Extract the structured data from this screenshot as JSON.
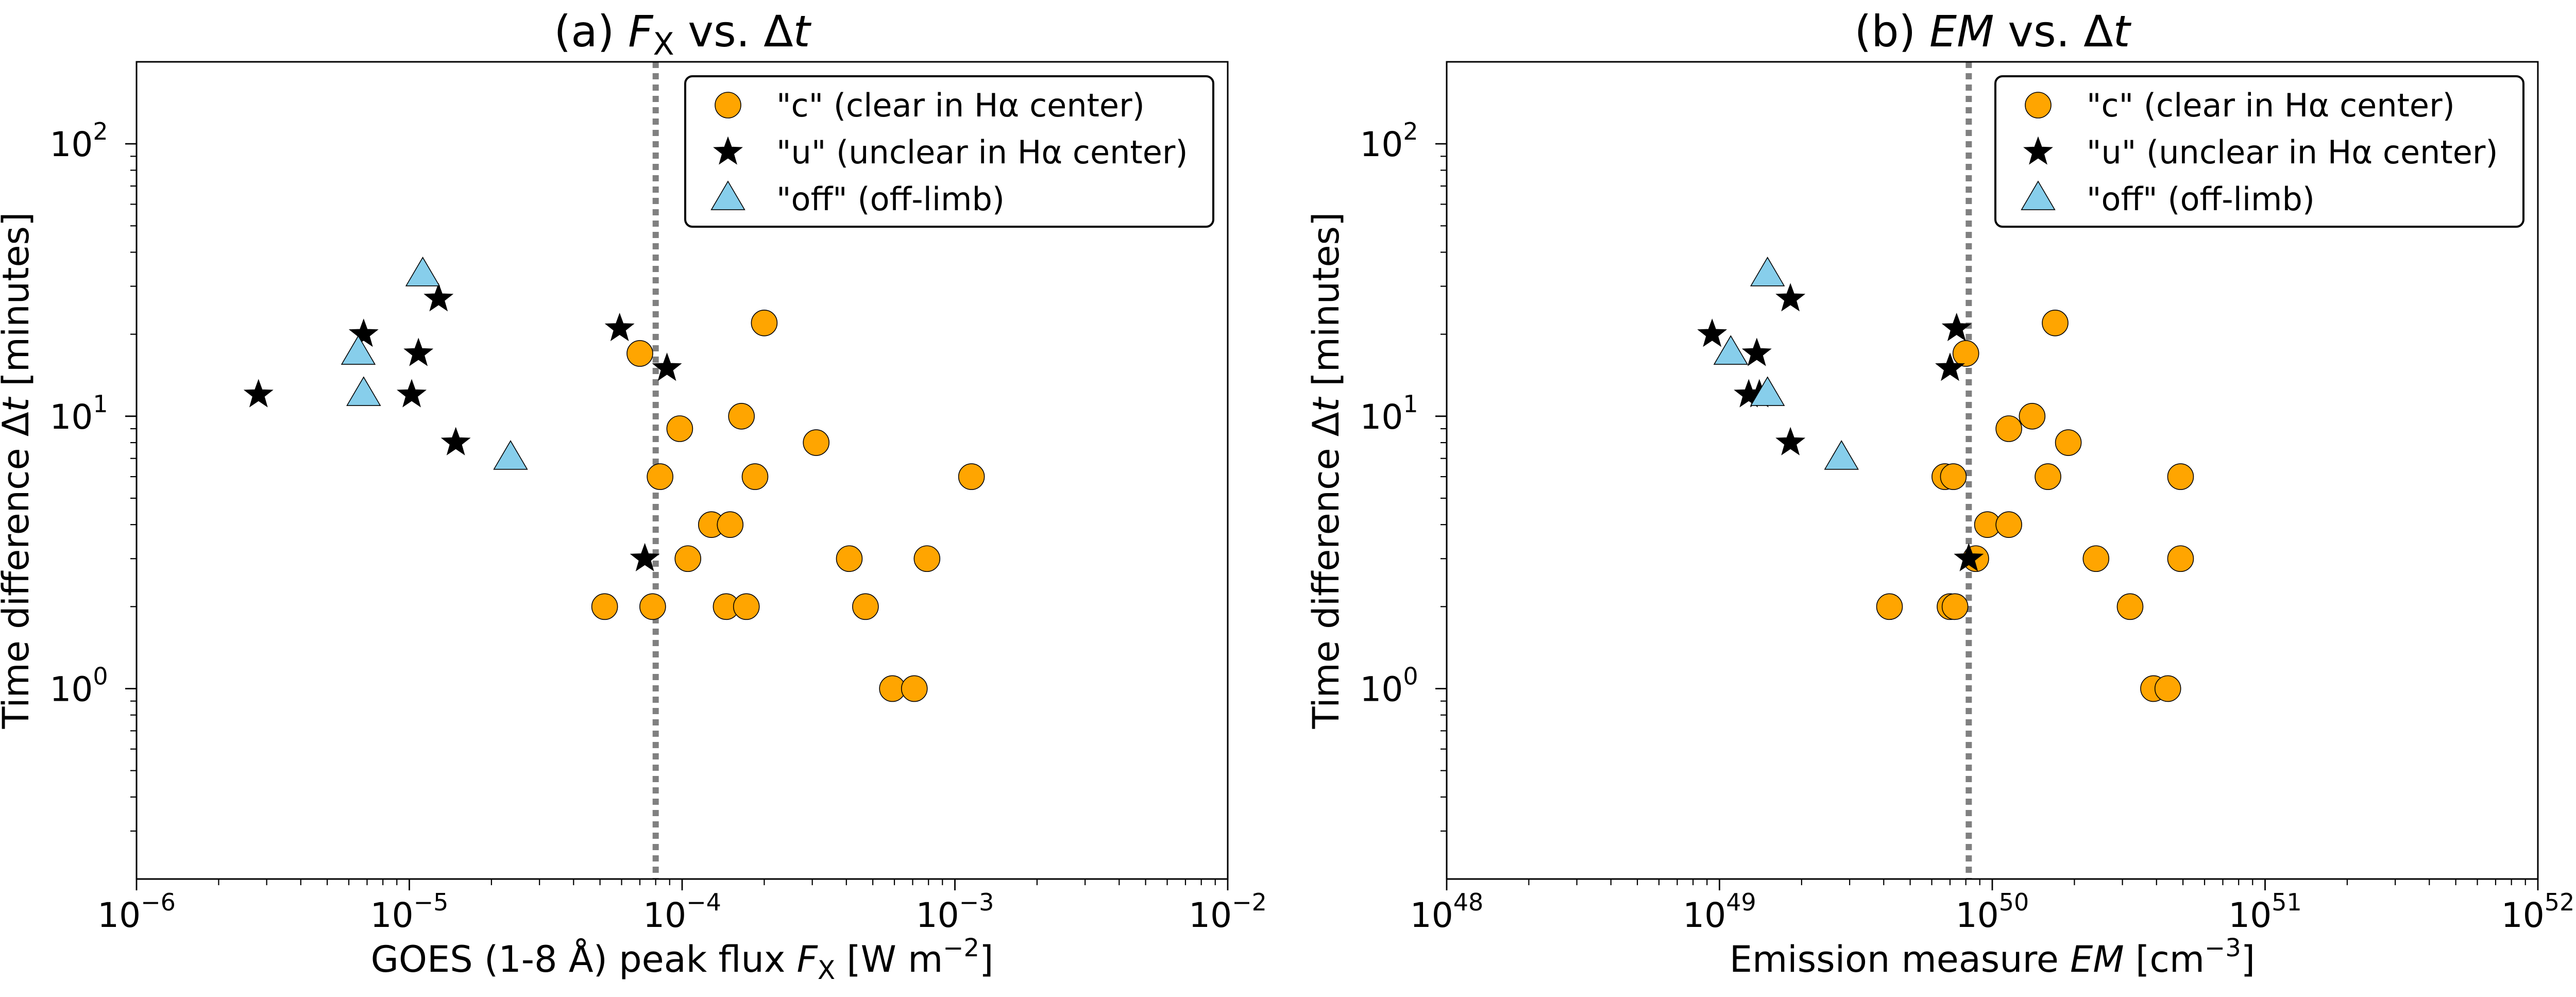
{
  "chart_data": [
    {
      "type": "scatter",
      "title_prefix": "(a) ",
      "title_var": "F",
      "title_var_sub": "X",
      "title_suffix": " vs. Δ",
      "title_var2": "t",
      "xlabel_prefix": "GOES (1-8 Å) peak flux  ",
      "xlabel_var": "F",
      "xlabel_var_sub": "X",
      "xlabel_unit": " [W m",
      "xlabel_unit_sup": "−2",
      "xlabel_unit_end": "]",
      "ylabel_prefix": "Time difference Δ",
      "ylabel_var": "t",
      "ylabel_suffix": " [minutes]",
      "xscale": "log",
      "yscale": "log",
      "xlim": [
        1e-06,
        0.01
      ],
      "ylim": [
        0.2,
        200
      ],
      "x_tick_exponents": [
        -6,
        -5,
        -4,
        -3,
        -2
      ],
      "y_tick_exponents": [
        0,
        1,
        2
      ],
      "tick_base": "10",
      "vline_x": 8e-05,
      "legend_position": "top-right",
      "series": [
        {
          "name": "\"c\" (clear in Hα center)",
          "marker": "circle",
          "color": "#ffa500",
          "points": [
            [
              5.2e-05,
              2
            ],
            [
              7e-05,
              17
            ],
            [
              7.8e-05,
              2
            ],
            [
              8.3e-05,
              6
            ],
            [
              9.8e-05,
              9
            ],
            [
              0.000105,
              3
            ],
            [
              0.000128,
              4
            ],
            [
              0.000145,
              2
            ],
            [
              0.00015,
              4
            ],
            [
              0.000165,
              10
            ],
            [
              0.000172,
              2
            ],
            [
              0.000185,
              6
            ],
            [
              0.0002,
              22
            ],
            [
              0.00031,
              8
            ],
            [
              0.00041,
              3
            ],
            [
              0.00047,
              2
            ],
            [
              0.00059,
              1
            ],
            [
              0.00071,
              1
            ],
            [
              0.00079,
              3
            ],
            [
              0.00115,
              6
            ]
          ]
        },
        {
          "name": "\"u\" (unclear in Hα center)",
          "marker": "star",
          "color": "#000000",
          "points": [
            [
              2.8e-06,
              12
            ],
            [
              6.8e-06,
              20
            ],
            [
              1.02e-05,
              12
            ],
            [
              1.08e-05,
              17
            ],
            [
              1.28e-05,
              27
            ],
            [
              1.48e-05,
              8
            ],
            [
              5.9e-05,
              21
            ],
            [
              7.3e-05,
              3
            ],
            [
              8.8e-05,
              15
            ]
          ]
        },
        {
          "name": "\"off\" (off-limb)",
          "marker": "triangle",
          "color": "#87ceeb",
          "points": [
            [
              6.5e-06,
              17
            ],
            [
              6.8e-06,
              12
            ],
            [
              1.12e-05,
              33
            ],
            [
              2.35e-05,
              7
            ]
          ]
        }
      ]
    },
    {
      "type": "scatter",
      "title_prefix": "(b) ",
      "title_var": "EM",
      "title_var_sub": "",
      "title_suffix": " vs. Δ",
      "title_var2": "t",
      "xlabel_prefix": "Emission measure ",
      "xlabel_var": "EM",
      "xlabel_var_sub": "",
      "xlabel_unit": " [cm",
      "xlabel_unit_sup": "−3",
      "xlabel_unit_end": "]",
      "ylabel_prefix": "Time difference Δ",
      "ylabel_var": "t",
      "ylabel_suffix": " [minutes]",
      "xscale": "log",
      "yscale": "log",
      "xlim": [
        1e+48,
        1e+52
      ],
      "ylim": [
        0.2,
        200
      ],
      "x_tick_exponents": [
        48,
        49,
        50,
        51,
        52
      ],
      "y_tick_exponents": [
        0,
        1,
        2
      ],
      "tick_base": "10",
      "vline_x": 8.2e+49,
      "legend_position": "top-right",
      "series": [
        {
          "name": "\"c\" (clear in Hα center)",
          "marker": "circle",
          "color": "#ffa500",
          "points": [
            [
              4.2e+49,
              2
            ],
            [
              6.7e+49,
              6
            ],
            [
              7e+49,
              2
            ],
            [
              7.2e+49,
              6
            ],
            [
              7.3e+49,
              2
            ],
            [
              8e+49,
              17
            ],
            [
              8.7e+49,
              3
            ],
            [
              9.6e+49,
              4
            ],
            [
              1.15e+50,
              9
            ],
            [
              1.15e+50,
              4
            ],
            [
              1.4e+50,
              10
            ],
            [
              1.6e+50,
              6
            ],
            [
              1.7e+50,
              22
            ],
            [
              1.9e+50,
              8
            ],
            [
              2.4e+50,
              3
            ],
            [
              3.2e+50,
              2
            ],
            [
              3.9e+50,
              1
            ],
            [
              4.4e+50,
              1
            ],
            [
              4.9e+50,
              6
            ],
            [
              4.9e+50,
              3
            ]
          ]
        },
        {
          "name": "\"u\" (unclear in Hα center)",
          "marker": "star",
          "color": "#000000",
          "points": [
            [
              9.4e+48,
              20
            ],
            [
              1.28e+49,
              12
            ],
            [
              1.37e+49,
              17
            ],
            [
              1.4e+49,
              12
            ],
            [
              1.82e+49,
              27
            ],
            [
              1.82e+49,
              8
            ],
            [
              7e+49,
              15
            ],
            [
              7.4e+49,
              21
            ],
            [
              8.2e+49,
              3
            ]
          ]
        },
        {
          "name": "\"off\" (off-limb)",
          "marker": "triangle",
          "color": "#87ceeb",
          "points": [
            [
              1.1e+49,
              17
            ],
            [
              1.5e+49,
              12
            ],
            [
              1.5e+49,
              33
            ],
            [
              2.8e+49,
              7
            ]
          ]
        }
      ]
    }
  ]
}
